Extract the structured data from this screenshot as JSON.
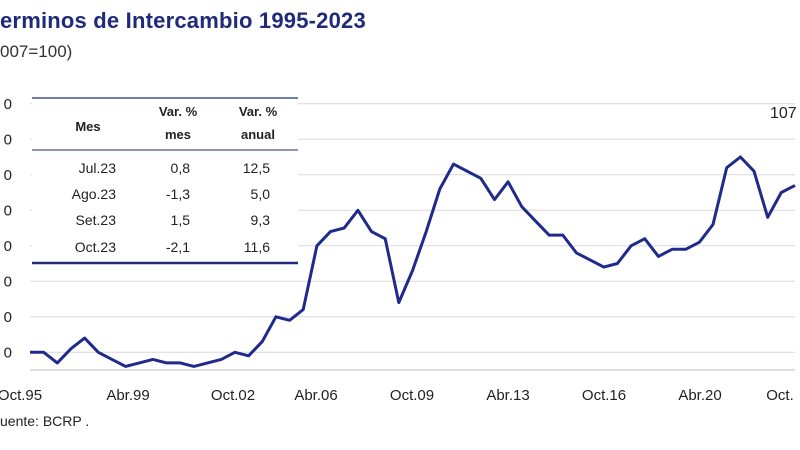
{
  "header": {
    "title": "erminos de Intercambio 1995-2023",
    "subtitle": "007=100)"
  },
  "footer": {
    "source": "uente: BCRP ."
  },
  "chart_data": {
    "type": "line",
    "title": "erminos de Intercambio 1995-2023",
    "subtitle": "007=100)",
    "ylabel": "",
    "ylim": [
      55,
      135
    ],
    "y_ticks": [
      "0",
      "0",
      "0",
      "0",
      "0",
      "0",
      "0",
      "0"
    ],
    "x_ticks": [
      "Oct.95",
      "Abr.99",
      "Oct.02",
      "Abr.06",
      "Oct.09",
      "Abr.13",
      "Oct.16",
      "Abr.20",
      "Oct."
    ],
    "x_range": [
      "1995-10",
      "2023-10"
    ],
    "grid": true,
    "color": "#1f2a8a",
    "end_label": "107",
    "series": [
      {
        "name": "",
        "x": [
          "1995-10",
          "1996-04",
          "1996-10",
          "1997-04",
          "1997-10",
          "1998-04",
          "1998-10",
          "1999-04",
          "1999-10",
          "2000-04",
          "2000-10",
          "2001-04",
          "2001-10",
          "2002-04",
          "2002-10",
          "2003-04",
          "2003-10",
          "2004-04",
          "2004-10",
          "2005-04",
          "2005-10",
          "2006-04",
          "2006-10",
          "2007-04",
          "2007-10",
          "2008-04",
          "2008-10",
          "2009-04",
          "2009-10",
          "2010-04",
          "2010-10",
          "2011-04",
          "2011-10",
          "2012-04",
          "2012-10",
          "2013-04",
          "2013-10",
          "2014-04",
          "2014-10",
          "2015-04",
          "2015-10",
          "2016-04",
          "2016-10",
          "2017-04",
          "2017-10",
          "2018-04",
          "2018-10",
          "2019-04",
          "2019-10",
          "2020-04",
          "2020-10",
          "2021-04",
          "2021-10",
          "2022-04",
          "2022-10",
          "2023-04",
          "2023-10"
        ],
        "values": [
          60,
          60,
          57,
          61,
          64,
          60,
          58,
          56,
          57,
          58,
          57,
          57,
          56,
          57,
          58,
          60,
          59,
          63,
          70,
          69,
          72,
          90,
          94,
          95,
          100,
          94,
          92,
          74,
          83,
          94,
          106,
          113,
          111,
          109,
          103,
          108,
          101,
          97,
          93,
          93,
          88,
          86,
          84,
          85,
          90,
          92,
          87,
          89,
          89,
          91,
          96,
          112,
          115,
          111,
          98,
          105,
          107
        ]
      }
    ]
  },
  "table": {
    "headers": [
      {
        "line1": "Mes",
        "line2": ""
      },
      {
        "line1": "Var. %",
        "line2": "mes"
      },
      {
        "line1": "Var. %",
        "line2": "anual"
      }
    ],
    "rows": [
      [
        "Jul.23",
        "0,8",
        "12,5"
      ],
      [
        "Ago.23",
        "-1,3",
        "5,0"
      ],
      [
        "Set.23",
        "1,5",
        "9,3"
      ],
      [
        "Oct.23",
        "-2,1",
        "11,6"
      ]
    ]
  }
}
